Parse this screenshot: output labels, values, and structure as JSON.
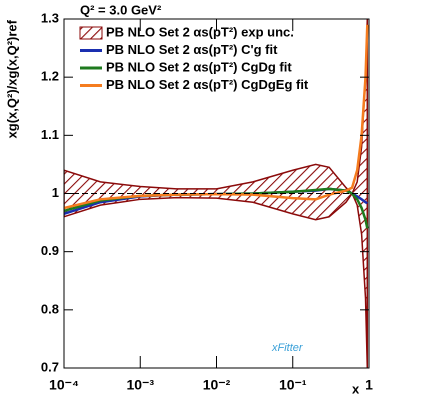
{
  "chart_data": {
    "type": "line",
    "annotation": "Q² = 3.0 GeV²",
    "xlabel": "x",
    "ylabel": "xg(x,Q²)/xg(x,Q²)ref",
    "watermark": "xFitter",
    "xscale": "log",
    "xlim": [
      0.0001,
      1
    ],
    "ylim": [
      0.7,
      1.3
    ],
    "xticks": [
      {
        "value": 0.0001,
        "label": "10⁻⁴"
      },
      {
        "value": 0.001,
        "label": "10⁻³"
      },
      {
        "value": 0.01,
        "label": "10⁻²"
      },
      {
        "value": 0.1,
        "label": "10⁻¹"
      },
      1
    ],
    "yticks": [
      0.7,
      0.8,
      0.9,
      1,
      1.1,
      1.2,
      1.3
    ],
    "x": [
      0.0001,
      0.0003,
      0.001,
      0.003,
      0.01,
      0.03,
      0.1,
      0.2,
      0.3,
      0.5,
      0.6,
      0.7,
      0.8,
      0.9,
      0.95
    ],
    "series": [
      {
        "name": "PB NLO Set 2 αs(pT²) exp unc.",
        "color": "#8b0a0a",
        "upper": [
          1.04,
          1.02,
          1.012,
          1.008,
          1.008,
          1.02,
          1.04,
          1.05,
          1.045,
          1.01,
          1.0,
          1.02,
          1.08,
          1.2,
          1.3
        ],
        "lower": [
          0.96,
          0.98,
          0.99,
          0.993,
          0.992,
          0.985,
          0.965,
          0.955,
          0.96,
          0.985,
          1.0,
          0.98,
          0.93,
          0.82,
          0.7
        ]
      },
      {
        "name": "PB NLO Set 2 αs(pT²) C'g fit",
        "color": "#1a2fb0",
        "values": [
          0.965,
          0.985,
          0.995,
          0.998,
          0.999,
          1.0,
          1.003,
          1.005,
          1.008,
          1.005,
          1.0,
          0.995,
          0.99,
          0.985,
          0.983
        ]
      },
      {
        "name": "PB NLO Set 2 αs(pT²) CgDg fit",
        "color": "#1e7a1e",
        "values": [
          0.97,
          0.988,
          0.996,
          0.998,
          0.999,
          1.0,
          1.003,
          1.006,
          1.008,
          1.005,
          1.0,
          0.99,
          0.975,
          0.955,
          0.94
        ]
      },
      {
        "name": "PB NLO Set 2 αs(pT²) CgDgEg fit",
        "color": "#f57c1f",
        "values": [
          0.975,
          0.99,
          0.996,
          0.998,
          0.999,
          0.998,
          0.992,
          0.99,
          0.998,
          1.005,
          1.01,
          1.04,
          1.1,
          1.2,
          1.29
        ]
      }
    ]
  }
}
